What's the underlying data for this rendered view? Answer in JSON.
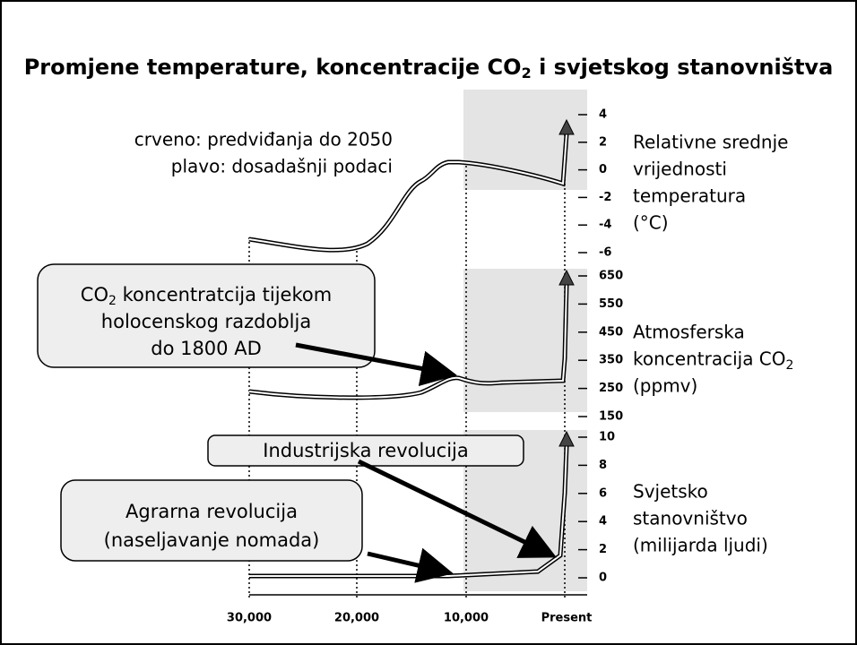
{
  "title": {
    "prefix": "Promjene temperature, koncentracije CO",
    "sub": "2",
    "suffix": " i svjetskog stanovništva"
  },
  "legend": [
    "crveno: predviđanja do 2050",
    "plavo: dosadašnji podaci"
  ],
  "panels": [
    {
      "ticks": [
        "4",
        "2",
        "0",
        "-2",
        "-4",
        "-6"
      ],
      "label": [
        "Relativne srednje",
        "vrijednosti",
        "temperatura",
        "(°C)"
      ]
    },
    {
      "ticks": [
        "650",
        "550",
        "450",
        "350",
        "250",
        "150"
      ],
      "label": [
        "Atmosferska",
        "koncentracija CO",
        "(ppmv)"
      ],
      "label_sub": "2"
    },
    {
      "ticks": [
        "10",
        "8",
        "6",
        "4",
        "2",
        "0"
      ],
      "label": [
        "Svjetsko",
        "stanovništvo",
        "(milijarda ljudi)"
      ]
    }
  ],
  "x_labels": [
    "30,000",
    "20,000",
    "10,000",
    "Present"
  ],
  "callouts": [
    {
      "lines": [
        "CO",
        " koncentratcija tijekom",
        "holocenskog razdoblja",
        "do 1800 AD"
      ],
      "sub": "2"
    },
    {
      "lines": [
        "Industrijska revolucija"
      ]
    },
    {
      "lines": [
        "Agrarna revolucija",
        "(naseljavanje nomada)"
      ]
    }
  ]
}
